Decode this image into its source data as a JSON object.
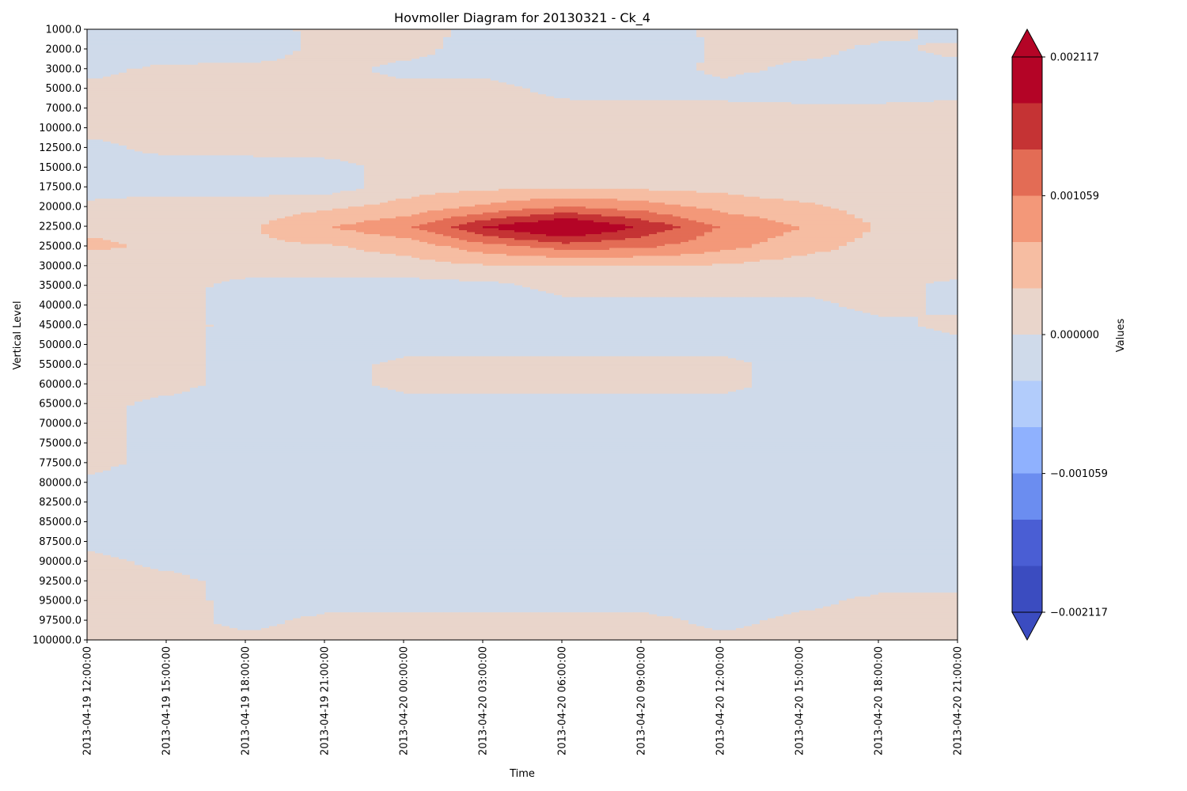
{
  "chart_data": {
    "type": "heatmap",
    "subtype": "filled-contour",
    "title": "Hovmoller Diagram for 20130321 - Ck_4",
    "xlabel": "Time",
    "ylabel": "Vertical Level",
    "colorbar_label": "Values",
    "y_inverted": true,
    "grid": false,
    "x": [
      "2013-04-19 12:00:00",
      "2013-04-19 15:00:00",
      "2013-04-19 18:00:00",
      "2013-04-19 21:00:00",
      "2013-04-20 00:00:00",
      "2013-04-20 03:00:00",
      "2013-04-20 06:00:00",
      "2013-04-20 09:00:00",
      "2013-04-20 12:00:00",
      "2013-04-20 15:00:00",
      "2013-04-20 18:00:00",
      "2013-04-20 21:00:00"
    ],
    "y": [
      "1000.0",
      "2000.0",
      "3000.0",
      "5000.0",
      "7000.0",
      "10000.0",
      "12500.0",
      "15000.0",
      "17500.0",
      "20000.0",
      "22500.0",
      "25000.0",
      "30000.0",
      "35000.0",
      "40000.0",
      "45000.0",
      "50000.0",
      "55000.0",
      "60000.0",
      "65000.0",
      "70000.0",
      "75000.0",
      "77500.0",
      "80000.0",
      "82500.0",
      "85000.0",
      "87500.0",
      "90000.0",
      "92500.0",
      "95000.0",
      "97500.0",
      "100000.0"
    ],
    "colorbar_ticks": [
      "0.002117",
      "0.001059",
      "0.000000",
      "−0.001059",
      "−0.002117"
    ],
    "colorbar_tick_values": [
      0.002117,
      0.001059,
      0.0,
      -0.001059,
      -0.002117
    ],
    "levels": [
      -0.003176,
      -0.002823,
      -0.00247,
      -0.002117,
      -0.001764,
      -0.001411,
      -0.001059,
      -0.000706,
      -0.000353,
      0.0,
      0.000353,
      0.000706,
      0.001059,
      0.001411,
      0.001764,
      0.002117,
      0.00247,
      0.002823
    ],
    "level_colors": [
      "#3b4cc0",
      "#4a5ed4",
      "#6b8df0",
      "#8fb1fe",
      "#b2ccfb",
      "#cfdaea",
      "#e9d5cb",
      "#f6bda2",
      "#f39879",
      "#e36c55",
      "#c53334",
      "#b40426"
    ],
    "extend": "both",
    "values": [
      [
        -0.00012,
        -0.0002,
        -0.00015,
        0.0001,
        0.00015,
        -0.00012,
        -0.00015,
        -0.0002,
        0.0001,
        0.0001,
        0.00015,
        -0.0002
      ],
      [
        -0.0002,
        -0.00025,
        -0.0002,
        0.00012,
        0.0001,
        -0.00015,
        -0.0002,
        -0.00025,
        8e-05,
        0.00012,
        -0.0001,
        0.00012
      ],
      [
        -0.0001,
        0.0001,
        0.0001,
        0.0001,
        -0.0001,
        -0.0001,
        -0.00015,
        -0.0002,
        0.0001,
        -0.0001,
        -0.00015,
        -0.00015
      ],
      [
        0.0001,
        0.0001,
        0.0001,
        0.0001,
        0.0001,
        0.0001,
        -0.0001,
        -0.00015,
        -0.00015,
        -0.0002,
        -0.0002,
        -0.0001
      ],
      [
        0.0001,
        0.0001,
        0.0001,
        0.0001,
        0.0001,
        0.0001,
        0.0001,
        0.0001,
        0.0001,
        8e-05,
        8e-05,
        0.0001
      ],
      [
        0.0001,
        0.0001,
        0.0001,
        0.0001,
        0.0001,
        0.0001,
        0.0001,
        0.0001,
        0.0001,
        0.0001,
        0.0001,
        0.0001
      ],
      [
        -0.0001,
        0.0001,
        0.0001,
        0.0001,
        0.0001,
        0.0001,
        0.0001,
        0.0001,
        0.0001,
        0.0001,
        0.0001,
        0.0001
      ],
      [
        -0.00015,
        -0.00015,
        -0.00015,
        -0.0001,
        0.0001,
        0.00012,
        0.00012,
        0.00012,
        0.00012,
        0.00012,
        0.00012,
        0.00012
      ],
      [
        -0.00015,
        -0.00015,
        -0.00015,
        -0.00015,
        0.0002,
        0.0003,
        0.0003,
        0.0003,
        0.00025,
        0.0001,
        0.00015,
        0.0001
      ],
      [
        0.0001,
        0.0002,
        0.0002,
        0.0003,
        0.0005,
        0.0008,
        0.0011,
        0.0009,
        0.0006,
        0.00045,
        0.0002,
        0.00015
      ],
      [
        0.0003,
        0.0003,
        0.0003,
        0.0007,
        0.001,
        0.0018,
        0.0023,
        0.0017,
        0.001,
        0.0007,
        0.0003,
        0.0002
      ],
      [
        0.0004,
        0.0003,
        0.0003,
        0.0003,
        0.0005,
        0.0009,
        0.0012,
        0.0011,
        0.0008,
        0.0005,
        0.0002,
        0.00015
      ],
      [
        0.00015,
        0.00015,
        0.00012,
        0.00015,
        0.0002,
        0.0003,
        0.0003,
        0.0003,
        0.0003,
        0.00015,
        0.00015,
        0.00015
      ],
      [
        0.0001,
        0.0001,
        -0.0001,
        -0.00015,
        -0.00015,
        -0.0001,
        0.0001,
        0.0001,
        0.0001,
        0.0001,
        0.0001,
        -0.0001
      ],
      [
        0.0001,
        0.0001,
        -0.00015,
        -0.00015,
        -0.0002,
        -0.0002,
        -0.0001,
        -0.0001,
        -0.0001,
        -0.0001,
        0.0001,
        -0.0001
      ],
      [
        0.0001,
        0.0001,
        -0.0001,
        -0.00015,
        -0.00015,
        -0.00015,
        -0.00015,
        -0.00015,
        -0.0001,
        -0.0001,
        -0.0001,
        0.0001
      ],
      [
        0.0001,
        0.0001,
        -0.00015,
        -0.00015,
        -0.00015,
        -0.00015,
        -0.00015,
        -0.00015,
        -0.00015,
        -0.00015,
        -0.0001,
        -0.0001
      ],
      [
        0.0001,
        0.0001,
        -0.00015,
        -0.00015,
        0.0001,
        0.0001,
        0.0001,
        0.0001,
        0.0001,
        -0.00015,
        -0.00015,
        -0.00015
      ],
      [
        0.0001,
        0.0001,
        -0.00015,
        -0.00015,
        0.0001,
        0.0001,
        0.0001,
        0.0001,
        0.0001,
        -0.00015,
        -0.00015,
        -0.00015
      ],
      [
        0.0001,
        -0.0001,
        -0.00015,
        -0.00015,
        -0.00015,
        -0.00015,
        -0.00015,
        -0.00015,
        -0.00015,
        -0.00015,
        -0.00015,
        -0.00015
      ],
      [
        0.0001,
        -0.00015,
        -0.00015,
        -0.00015,
        -0.00015,
        -0.00015,
        -0.00015,
        -0.00015,
        -0.00015,
        -0.00015,
        -0.00015,
        -0.00015
      ],
      [
        0.0001,
        -0.00015,
        -0.00015,
        -0.00015,
        -0.00015,
        -0.00015,
        -0.00015,
        -0.00015,
        -0.00015,
        -0.00015,
        -0.00015,
        -0.00015
      ],
      [
        0.0001,
        -0.00015,
        -0.00015,
        -0.00015,
        -0.00015,
        -0.00015,
        -0.00015,
        -0.00015,
        -0.00015,
        -0.00015,
        -0.00015,
        -0.00015
      ],
      [
        -0.0001,
        -0.00015,
        -0.00015,
        -0.00015,
        -0.00015,
        -0.00015,
        -0.00015,
        -0.00015,
        -0.00015,
        -0.00015,
        -0.00015,
        -0.00015
      ],
      [
        -0.00015,
        -0.00015,
        -0.00015,
        -0.00015,
        -0.00015,
        -0.00015,
        -0.00015,
        -0.00015,
        -0.00015,
        -0.00015,
        -0.00015,
        -0.00015
      ],
      [
        -0.00015,
        -0.00015,
        -0.00015,
        -0.00015,
        -0.00015,
        -0.00015,
        -0.00015,
        -0.00015,
        -0.00015,
        -0.00015,
        -0.00015,
        -0.00015
      ],
      [
        -0.0001,
        -0.00015,
        -0.00015,
        -0.00015,
        -0.00015,
        -0.00015,
        -0.00015,
        -0.00015,
        -0.00015,
        -0.00015,
        -0.00015,
        -0.00015
      ],
      [
        0.0001,
        -0.0001,
        -0.00015,
        -0.00015,
        -0.00015,
        -0.00015,
        -0.00015,
        -0.00015,
        -0.00015,
        -0.00015,
        -0.00015,
        -0.00015
      ],
      [
        0.0001,
        0.0001,
        -0.00015,
        -0.00015,
        -0.00015,
        -0.00015,
        -0.00015,
        -0.00015,
        -0.00015,
        -0.00015,
        -0.00015,
        -0.0001
      ],
      [
        0.0001,
        0.0001,
        -0.0001,
        -0.00015,
        -0.00015,
        -0.00015,
        -0.00015,
        -0.00015,
        -0.00015,
        -0.0001,
        0.0001,
        0.0001
      ],
      [
        0.0001,
        0.0001,
        -0.0001,
        0.0001,
        0.0001,
        0.0001,
        0.0001,
        0.0001,
        -0.0001,
        0.0001,
        0.0001,
        0.0001
      ],
      [
        0.00015,
        0.0001,
        0.0001,
        0.0001,
        0.0001,
        0.0001,
        0.0001,
        0.0001,
        0.0001,
        0.0001,
        0.0001,
        0.0001
      ]
    ]
  }
}
